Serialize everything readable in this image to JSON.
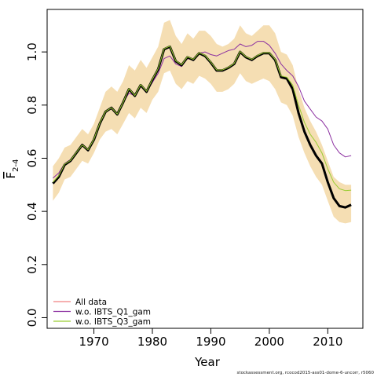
{
  "chart_data": {
    "type": "line",
    "xlabel": "Year",
    "ylabel": "F",
    "ylabel_sub": "2-4",
    "xlim": [
      1962,
      2016
    ],
    "ylim": [
      -0.04,
      1.16
    ],
    "xticks": [
      1970,
      1980,
      1990,
      2000,
      2010
    ],
    "yticks": [
      "0.0",
      "0.2",
      "0.4",
      "0.6",
      "0.8",
      "1.0"
    ],
    "years": [
      1963,
      1964,
      1965,
      1966,
      1967,
      1968,
      1969,
      1970,
      1971,
      1972,
      1973,
      1974,
      1975,
      1976,
      1977,
      1978,
      1979,
      1980,
      1981,
      1982,
      1983,
      1984,
      1985,
      1986,
      1987,
      1988,
      1989,
      1990,
      1991,
      1992,
      1993,
      1994,
      1995,
      1996,
      1997,
      1998,
      1999,
      2000,
      2001,
      2002,
      2003,
      2004,
      2005,
      2006,
      2007,
      2008,
      2009,
      2010,
      2011,
      2012,
      2013,
      2014
    ],
    "band": {
      "color": "#f5deb3",
      "lower": [
        0.44,
        0.47,
        0.52,
        0.53,
        0.56,
        0.59,
        0.58,
        0.62,
        0.67,
        0.7,
        0.71,
        0.69,
        0.73,
        0.77,
        0.75,
        0.79,
        0.77,
        0.82,
        0.85,
        0.92,
        0.93,
        0.88,
        0.86,
        0.89,
        0.88,
        0.91,
        0.9,
        0.88,
        0.85,
        0.85,
        0.86,
        0.88,
        0.92,
        0.89,
        0.88,
        0.89,
        0.9,
        0.89,
        0.86,
        0.81,
        0.8,
        0.76,
        0.68,
        0.62,
        0.57,
        0.53,
        0.5,
        0.44,
        0.38,
        0.36,
        0.355,
        0.36
      ],
      "upper": [
        0.57,
        0.6,
        0.64,
        0.65,
        0.68,
        0.71,
        0.69,
        0.73,
        0.79,
        0.85,
        0.87,
        0.85,
        0.89,
        0.95,
        0.93,
        0.97,
        0.94,
        0.98,
        1.02,
        1.11,
        1.12,
        1.06,
        1.03,
        1.07,
        1.05,
        1.08,
        1.08,
        1.06,
        1.03,
        1.02,
        1.03,
        1.05,
        1.1,
        1.07,
        1.06,
        1.08,
        1.1,
        1.1,
        1.07,
        1.0,
        0.99,
        0.95,
        0.86,
        0.79,
        0.74,
        0.7,
        0.65,
        0.59,
        0.53,
        0.51,
        0.5,
        0.5
      ]
    },
    "series": [
      {
        "name": "All data",
        "color": "#f08080",
        "values": [
          0.505,
          0.53,
          0.575,
          0.59,
          0.62,
          0.65,
          0.63,
          0.67,
          0.73,
          0.775,
          0.79,
          0.765,
          0.81,
          0.86,
          0.835,
          0.875,
          0.85,
          0.895,
          0.935,
          1.01,
          1.02,
          0.965,
          0.95,
          0.98,
          0.97,
          0.995,
          0.985,
          0.96,
          0.93,
          0.93,
          0.94,
          0.955,
          1.0,
          0.98,
          0.97,
          0.985,
          0.995,
          0.995,
          0.97,
          0.905,
          0.9,
          0.86,
          0.77,
          0.7,
          0.65,
          0.61,
          0.58,
          0.51,
          0.45,
          0.42,
          0.415,
          0.425
        ]
      },
      {
        "name": "w.o. IBTS_Q1_gam",
        "color": "#8b2fa0",
        "values": [
          0.525,
          0.545,
          0.58,
          0.595,
          0.625,
          0.65,
          0.635,
          0.675,
          0.735,
          0.775,
          0.785,
          0.765,
          0.81,
          0.845,
          0.835,
          0.875,
          0.85,
          0.885,
          0.92,
          0.975,
          0.985,
          0.955,
          0.945,
          0.975,
          0.97,
          0.995,
          1.0,
          0.99,
          0.985,
          0.995,
          1.005,
          1.01,
          1.03,
          1.02,
          1.025,
          1.04,
          1.04,
          1.025,
          0.995,
          0.955,
          0.93,
          0.91,
          0.87,
          0.815,
          0.785,
          0.755,
          0.74,
          0.71,
          0.65,
          0.62,
          0.605,
          0.61
        ]
      },
      {
        "name": "w.o. IBTS_Q3_gam",
        "color": "#9acd32",
        "values": [
          0.51,
          0.535,
          0.578,
          0.592,
          0.622,
          0.65,
          0.632,
          0.672,
          0.732,
          0.776,
          0.79,
          0.766,
          0.811,
          0.862,
          0.836,
          0.877,
          0.852,
          0.897,
          0.937,
          1.012,
          1.022,
          0.967,
          0.952,
          0.982,
          0.972,
          0.997,
          0.987,
          0.962,
          0.932,
          0.932,
          0.942,
          0.957,
          1.002,
          0.982,
          0.972,
          0.987,
          0.997,
          0.997,
          0.972,
          0.91,
          0.905,
          0.875,
          0.8,
          0.735,
          0.69,
          0.66,
          0.62,
          0.56,
          0.51,
          0.485,
          0.478,
          0.48
        ]
      }
    ],
    "legend_position": "bottom-left"
  },
  "credit": "stockassessment.org, rcocod2015-ass01-dome-6-uncorr, r5060"
}
